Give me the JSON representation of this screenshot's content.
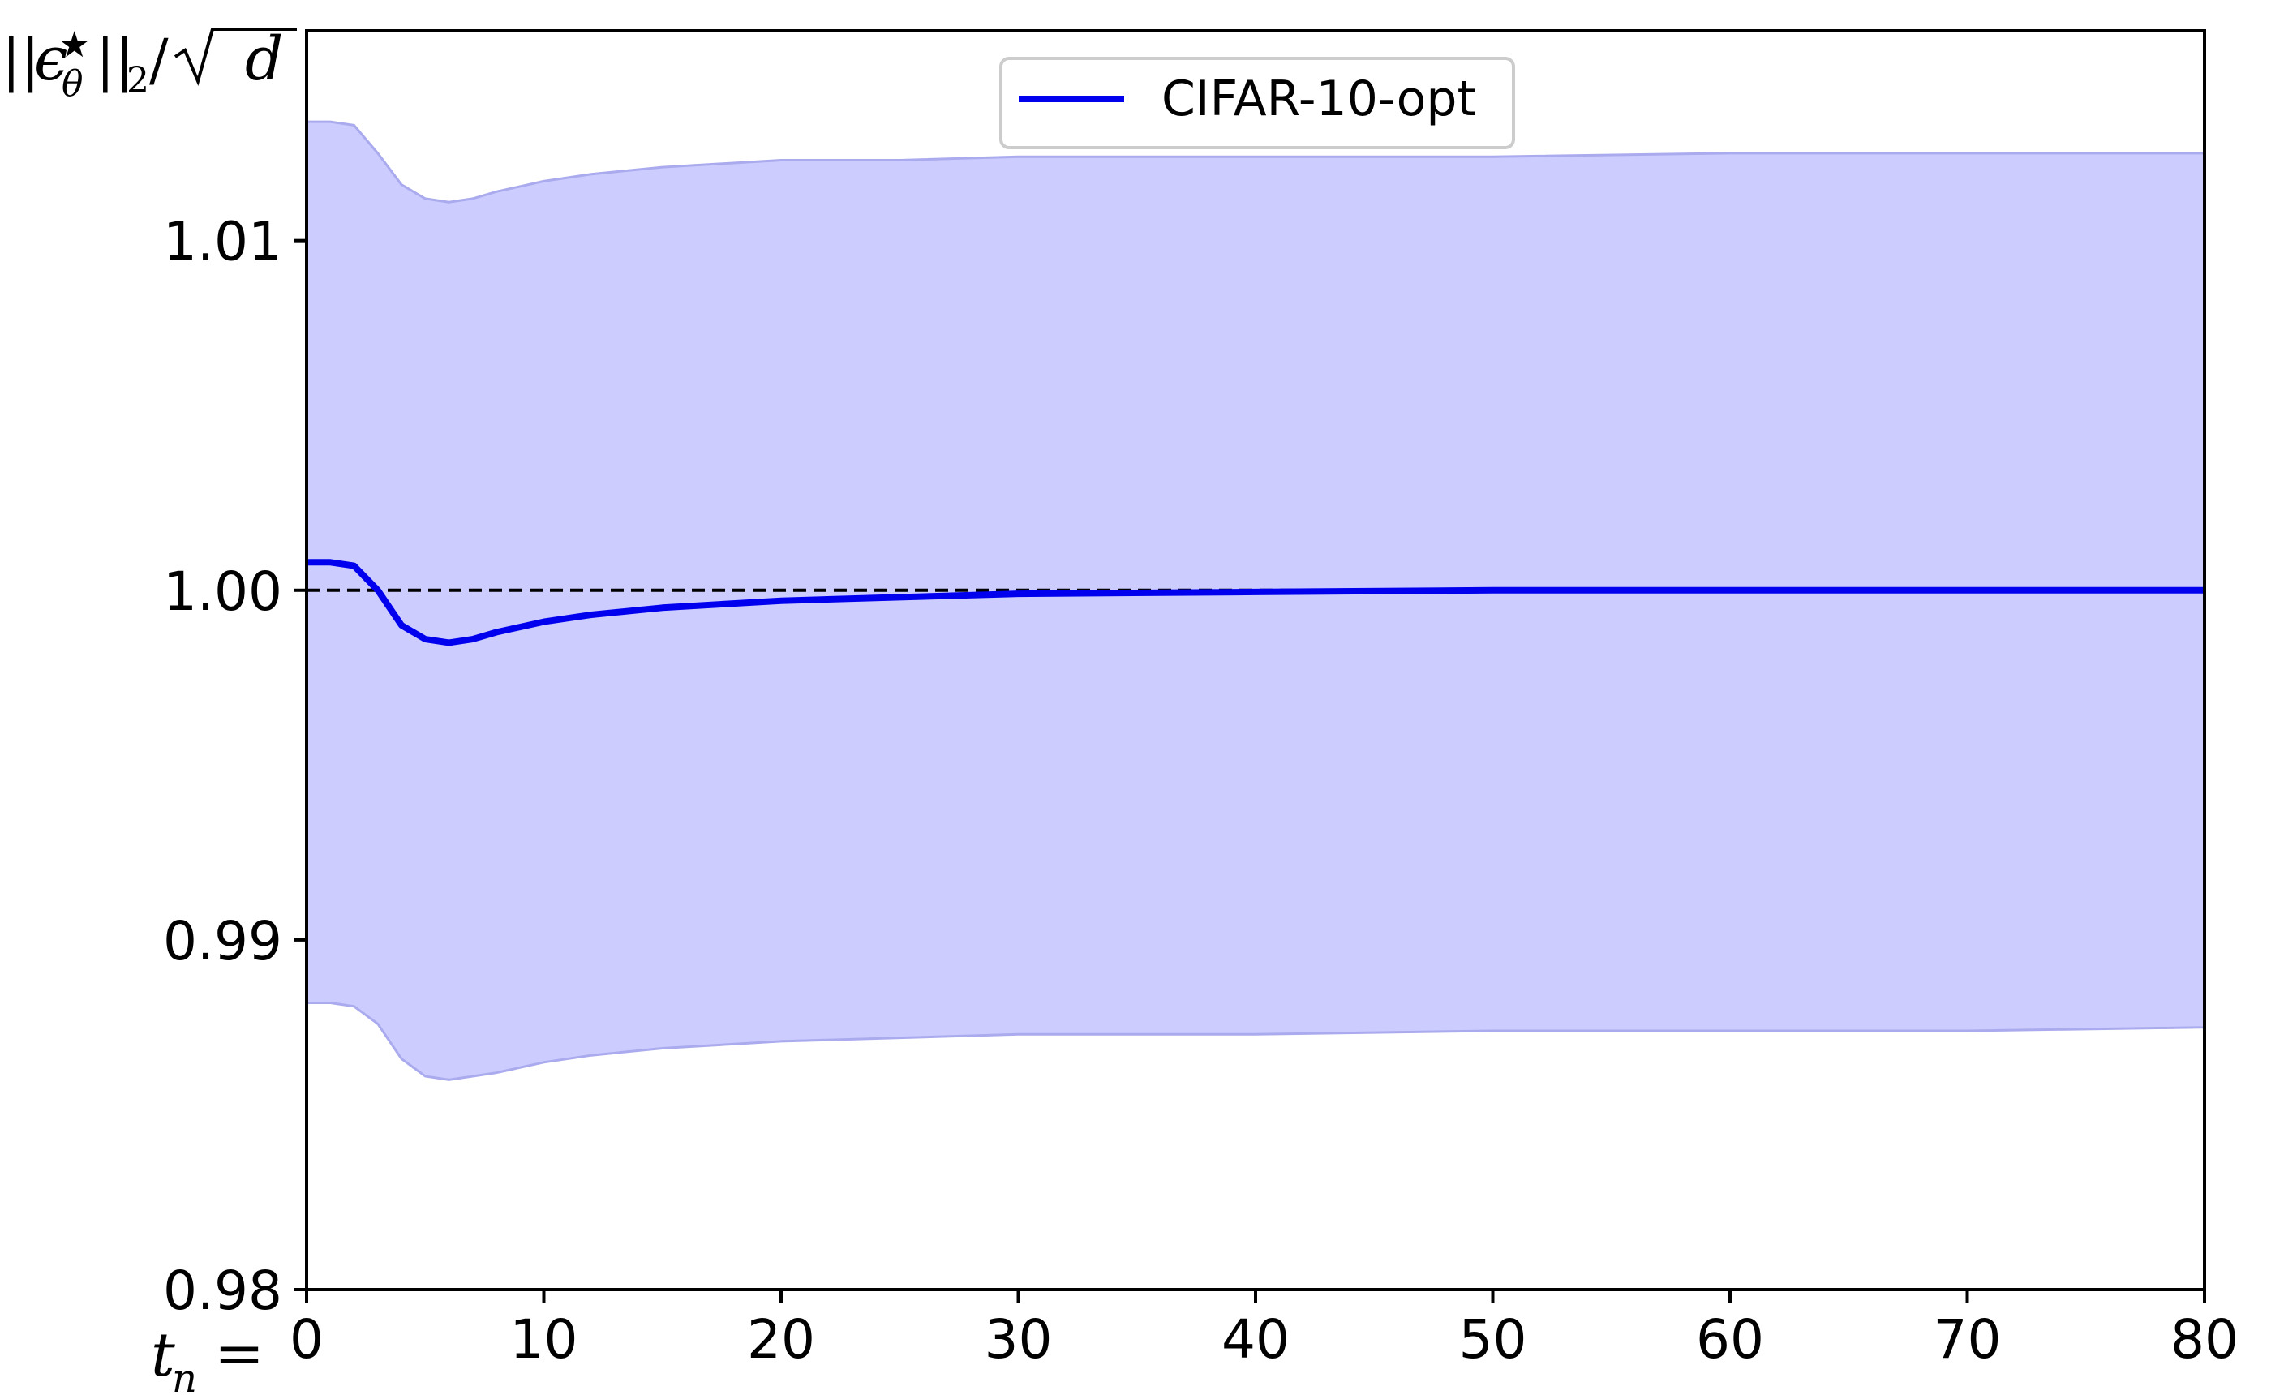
{
  "chart_data": {
    "type": "line",
    "xlabel": "t_n =",
    "ylabel": "||ε_θ*||_2/√d",
    "xlim": [
      0,
      80
    ],
    "ylim": [
      0.98,
      1.016
    ],
    "xticks": [
      "0",
      "10",
      "20",
      "30",
      "40",
      "50",
      "60",
      "70",
      "80"
    ],
    "yticks": [
      "0.98",
      "0.99",
      "1.00",
      "1.01"
    ],
    "yticks_values": [
      0.98,
      0.99,
      1.0,
      1.01
    ],
    "xticks_values": [
      0,
      10,
      20,
      30,
      40,
      50,
      60,
      70,
      80
    ],
    "legend_position": "top-center",
    "grid": false,
    "reference_line": {
      "y": 1.0,
      "style": "dashed",
      "color": "#000000"
    },
    "series": [
      {
        "name": "CIFAR-10-opt",
        "color": "#0000ee",
        "band_color": "#ccccff",
        "band_edge_color": "#aaaaee",
        "x": [
          0,
          1,
          2,
          3,
          4,
          5,
          6,
          7,
          8,
          10,
          12,
          15,
          20,
          25,
          30,
          40,
          50,
          60,
          70,
          80
        ],
        "y": [
          1.0008,
          1.0008,
          1.0007,
          1.0,
          0.999,
          0.9986,
          0.9985,
          0.9986,
          0.9988,
          0.9991,
          0.9993,
          0.9995,
          0.9997,
          0.9998,
          0.9999,
          0.99995,
          1.0,
          1.0,
          1.0,
          1.0
        ],
        "upper": [
          1.0134,
          1.0134,
          1.0133,
          1.0125,
          1.0116,
          1.0112,
          1.0111,
          1.0112,
          1.0114,
          1.0117,
          1.0119,
          1.0121,
          1.0123,
          1.0123,
          1.0124,
          1.0124,
          1.0124,
          1.0125,
          1.0125,
          1.0125
        ],
        "lower": [
          0.9882,
          0.9882,
          0.9881,
          0.9876,
          0.9866,
          0.9861,
          0.986,
          0.9861,
          0.9862,
          0.9865,
          0.9867,
          0.9869,
          0.9871,
          0.9872,
          0.9873,
          0.9873,
          0.9874,
          0.9874,
          0.9874,
          0.9875
        ]
      }
    ]
  }
}
